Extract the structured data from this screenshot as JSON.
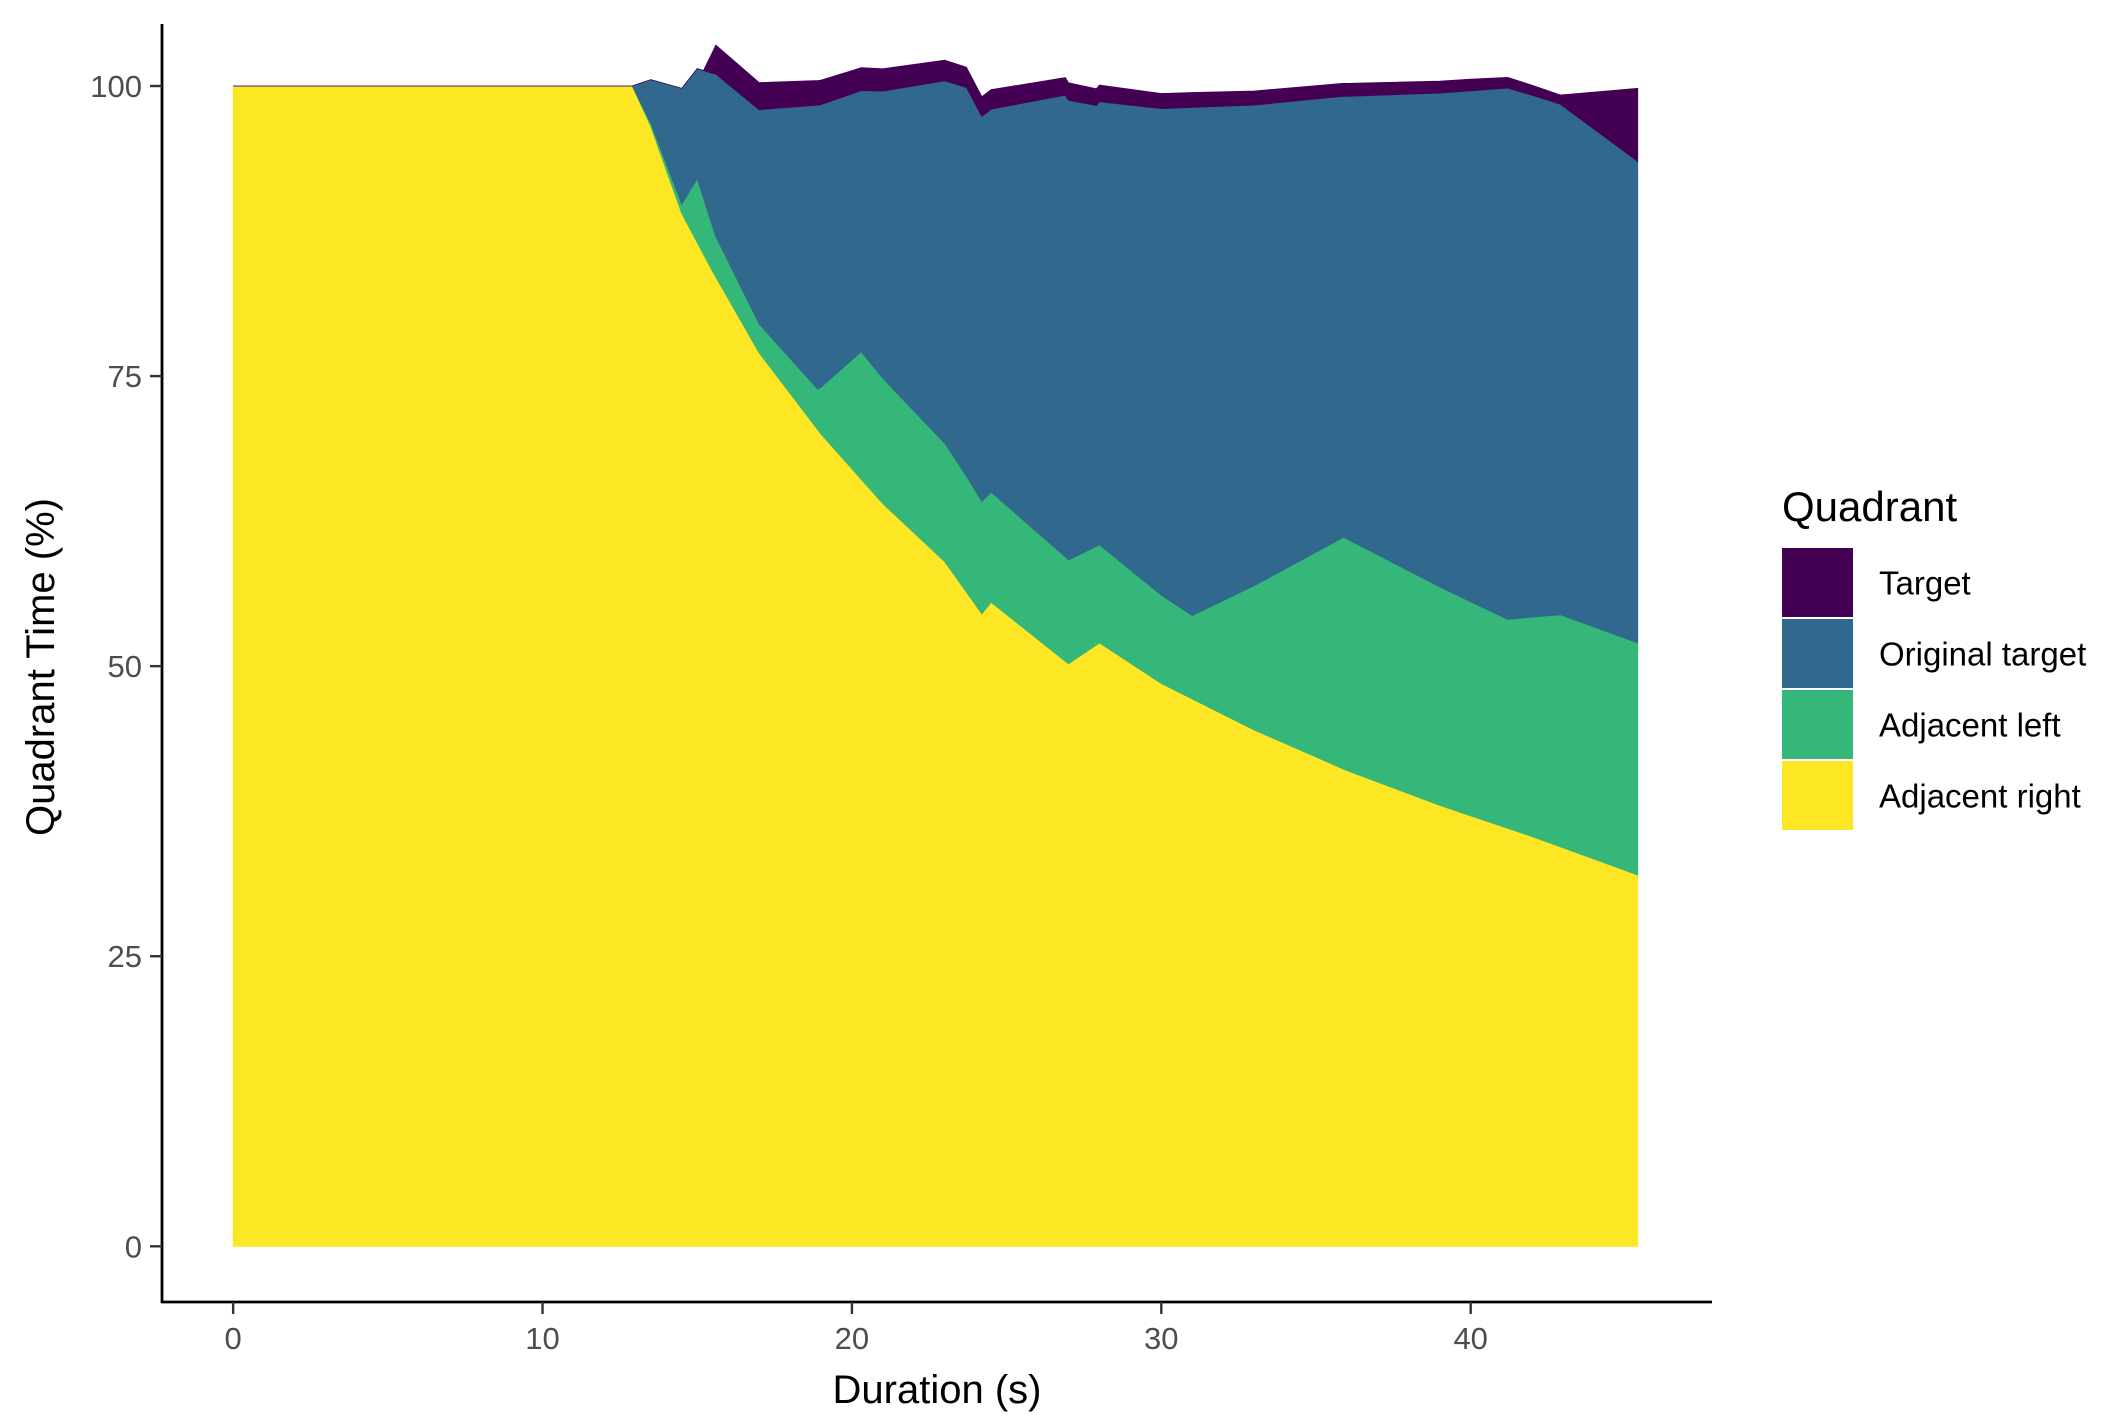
{
  "chart_data": {
    "type": "area",
    "stacked": true,
    "normalized_percent": true,
    "xlabel": "Duration (s)",
    "ylabel": "Quadrant Time (%)",
    "xlim": [
      -2.3,
      47.8
    ],
    "ylim": [
      -4.8,
      105
    ],
    "xticks": [
      0,
      10,
      20,
      30,
      40
    ],
    "yticks": [
      0,
      25,
      50,
      75,
      100
    ],
    "grid": false,
    "legend": {
      "title": "Quadrant",
      "position": "right"
    },
    "series": [
      {
        "name": "Adjacent right",
        "color": "#FDE725",
        "points": [
          [
            0,
            100
          ],
          [
            12.9,
            100
          ],
          [
            13.5,
            96.5
          ],
          [
            14.5,
            89
          ],
          [
            15.5,
            84
          ],
          [
            17,
            77
          ],
          [
            19,
            70
          ],
          [
            21,
            64
          ],
          [
            23,
            59
          ],
          [
            24.2,
            54.5
          ],
          [
            24.5,
            55.5
          ],
          [
            27,
            50.2
          ],
          [
            28,
            52
          ],
          [
            30,
            48.5
          ],
          [
            33,
            44.5
          ],
          [
            36,
            41
          ],
          [
            39,
            38
          ],
          [
            42,
            35.3
          ],
          [
            45.4,
            32
          ]
        ]
      },
      {
        "name": "Adjacent left",
        "color": "#35B779",
        "points": [
          [
            0,
            0
          ],
          [
            12.9,
            0
          ],
          [
            14.5,
            0.8
          ],
          [
            15,
            5.5
          ],
          [
            15.6,
            3.5
          ],
          [
            17,
            2.5
          ],
          [
            18.9,
            3.5
          ],
          [
            20.3,
            11
          ],
          [
            23.7,
            10
          ],
          [
            24.5,
            9.5
          ],
          [
            26.9,
            9
          ],
          [
            27.9,
            8.5
          ],
          [
            31,
            7.2
          ],
          [
            35.9,
            20
          ],
          [
            41.2,
            18
          ],
          [
            42.9,
            20
          ],
          [
            45.4,
            20
          ]
        ]
      },
      {
        "name": "Original target",
        "color": "#31688E",
        "points": [
          [
            0,
            0
          ],
          [
            12.9,
            0
          ],
          [
            14.5,
            10
          ],
          [
            15,
            9.5
          ],
          [
            15.6,
            14
          ],
          [
            18.9,
            24.5
          ],
          [
            20.3,
            22.5
          ],
          [
            23.7,
            33.5
          ],
          [
            24.5,
            33
          ],
          [
            26.9,
            39.8
          ],
          [
            27.9,
            38
          ],
          [
            31,
            43.8
          ],
          [
            35.9,
            38
          ],
          [
            41.2,
            45.8
          ],
          [
            42.9,
            44
          ],
          [
            45.4,
            41.5
          ]
        ]
      },
      {
        "name": "Target",
        "color": "#440154",
        "points": [
          [
            0,
            0
          ],
          [
            15.2,
            0
          ],
          [
            15.6,
            2.5
          ],
          [
            20,
            2
          ],
          [
            30,
            1.3
          ],
          [
            40,
            1
          ],
          [
            42.9,
            0.8
          ],
          [
            45.4,
            6.3
          ]
        ]
      }
    ]
  }
}
